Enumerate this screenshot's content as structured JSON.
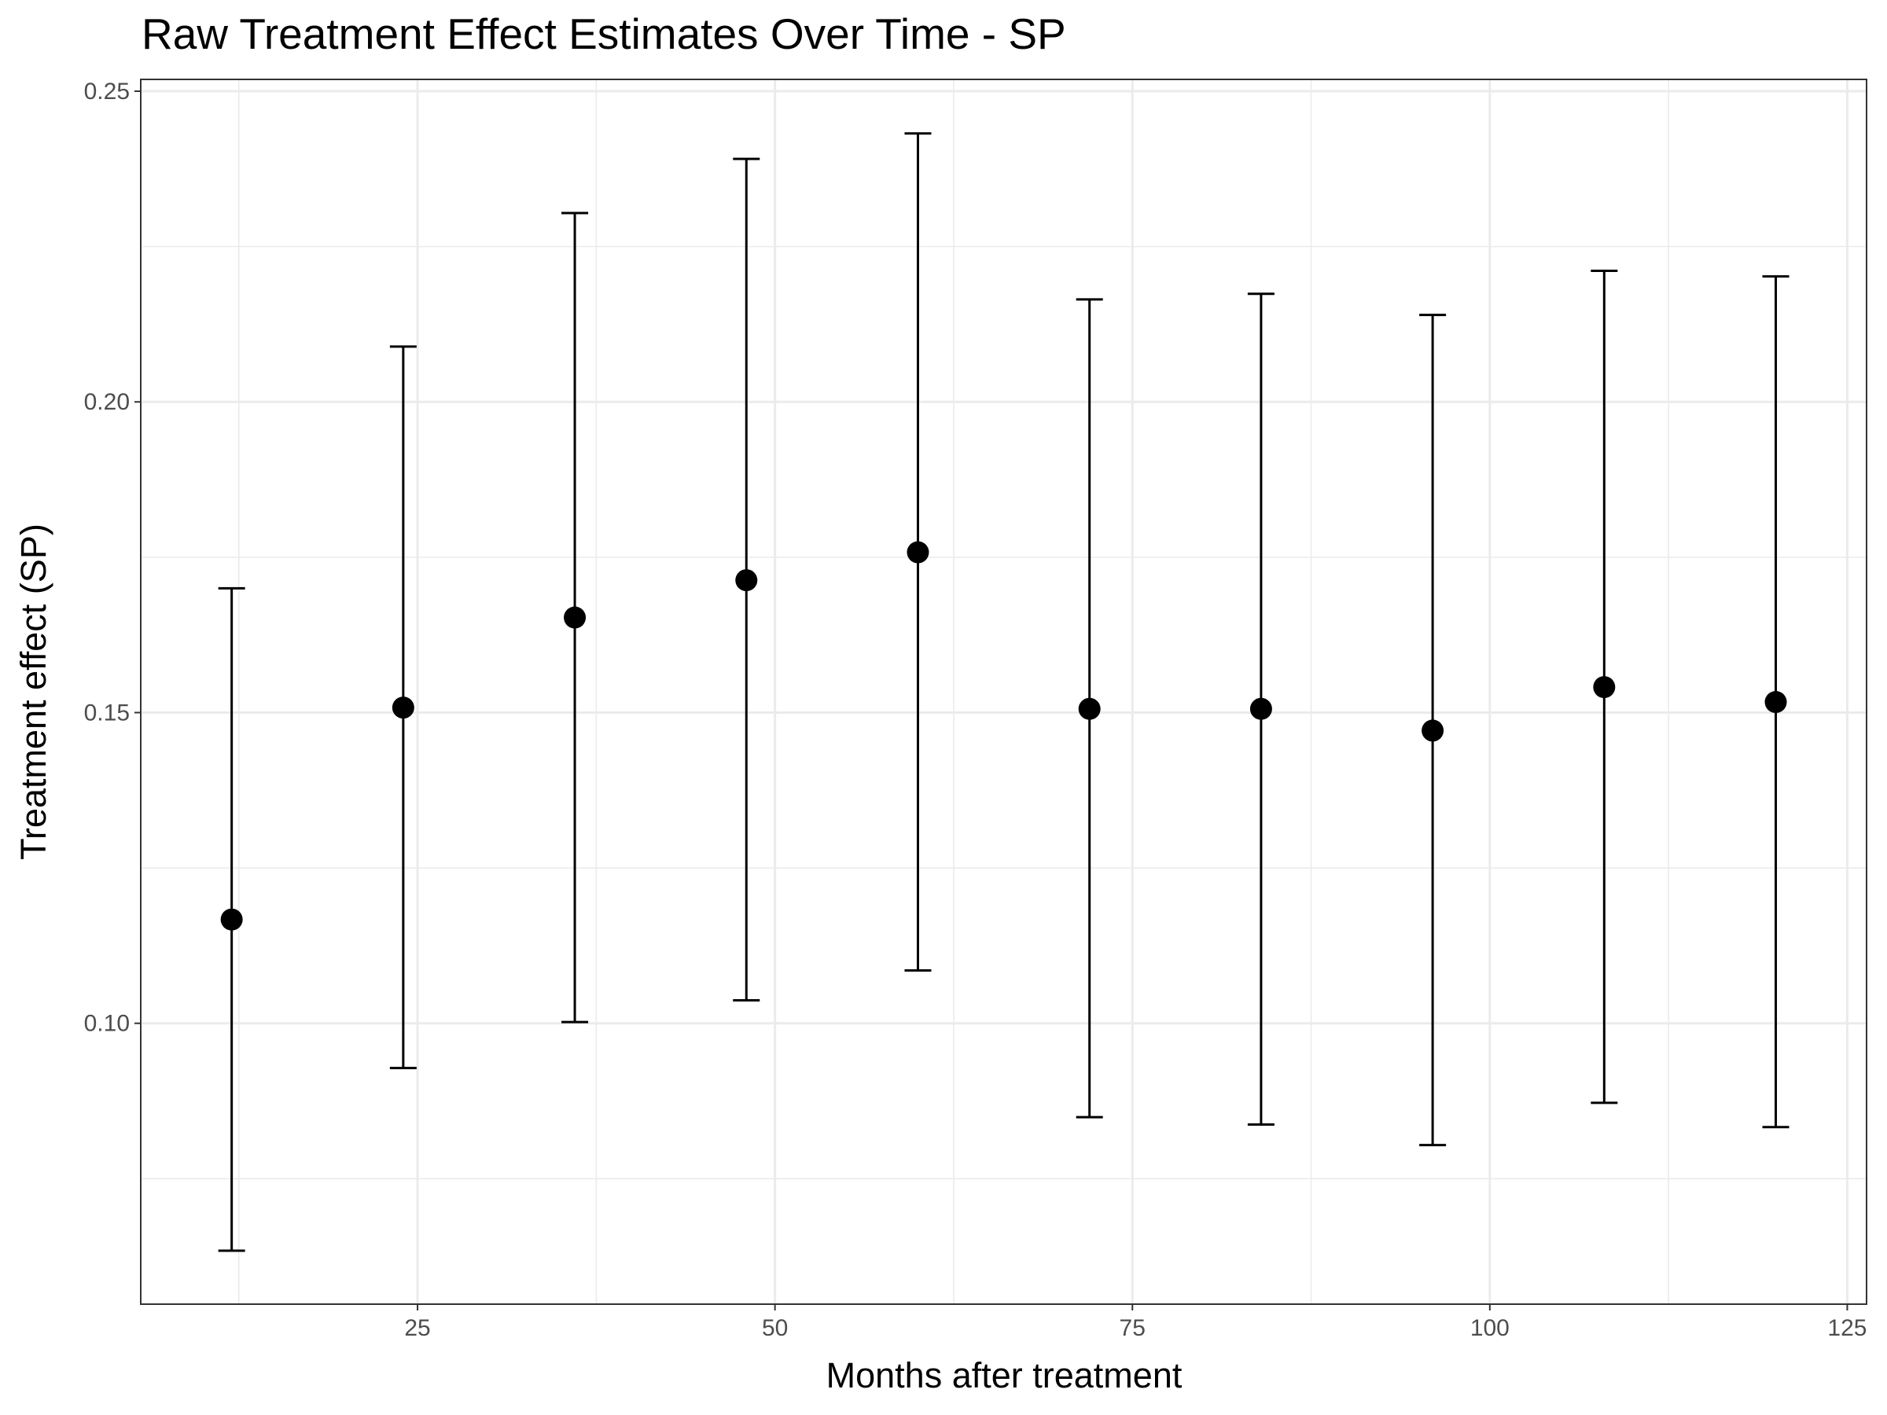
{
  "chart_data": {
    "type": "errorbar",
    "title": "Raw Treatment Effect Estimates Over Time - SP",
    "x_label": "Months after treatment",
    "y_label": "Treatment effect (SP)",
    "x": [
      12,
      24,
      36,
      48,
      60,
      72,
      84,
      96,
      108,
      120
    ],
    "values": [
      0.1167,
      0.1508,
      0.1653,
      0.1713,
      0.1758,
      0.1506,
      0.1506,
      0.1471,
      0.1541,
      0.1517
    ],
    "lower": [
      0.0634,
      0.0928,
      0.1002,
      0.1037,
      0.1085,
      0.0849,
      0.0837,
      0.0804,
      0.0872,
      0.0833
    ],
    "upper": [
      0.17,
      0.2089,
      0.2304,
      0.2391,
      0.2432,
      0.2165,
      0.2174,
      0.214,
      0.2211,
      0.2202
    ],
    "color": "#000000",
    "xlim": [
      5.64,
      126.35
    ],
    "ylim": [
      0.0548,
      0.2519
    ],
    "xticks": [
      25,
      50,
      75,
      100,
      125
    ],
    "yticks": [
      {
        "value": 0.1,
        "label": "0.10"
      },
      0.15,
      {
        "value": 0.2,
        "label": "0.20"
      },
      0.25
    ],
    "x_minor_ticks": [
      12.5,
      37.5,
      62.5,
      87.5,
      112.5
    ],
    "y_minor_ticks": [
      0.075,
      0.125,
      0.175,
      0.225
    ],
    "grid": true
  }
}
